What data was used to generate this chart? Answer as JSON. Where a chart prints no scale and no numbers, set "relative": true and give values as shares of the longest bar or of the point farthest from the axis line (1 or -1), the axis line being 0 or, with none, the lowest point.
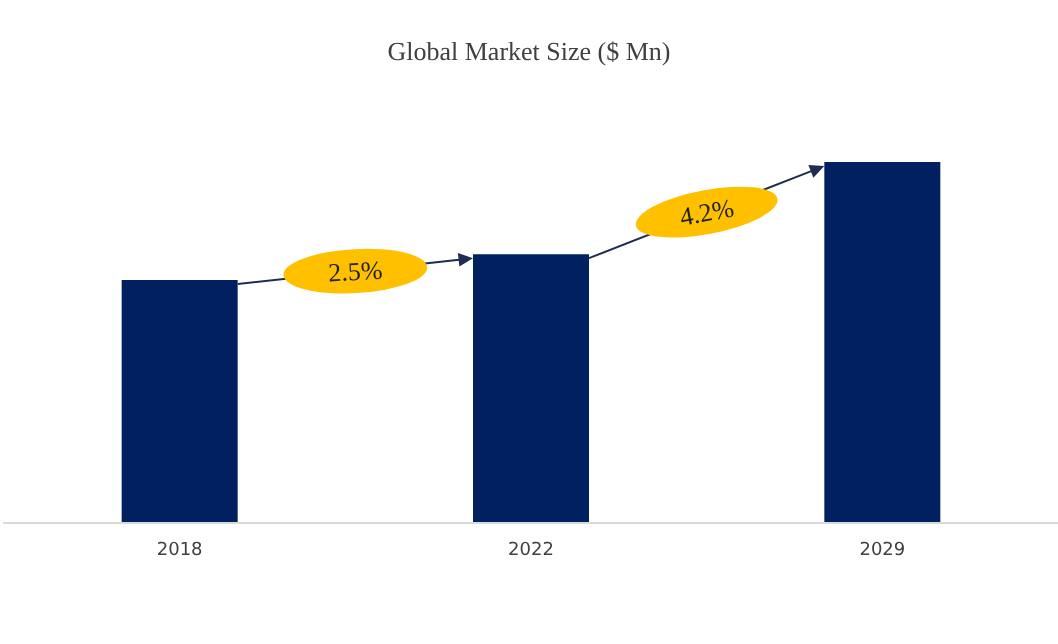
{
  "chart_data": {
    "type": "bar",
    "title": "Global Market Size ($ Mn)",
    "relative": true,
    "categories": [
      "2018",
      "2022",
      "2029"
    ],
    "values": [
      0.672,
      0.744,
      1
    ],
    "color": "#002060",
    "annotations": [
      "2.5%",
      "4.2%"
    ]
  }
}
